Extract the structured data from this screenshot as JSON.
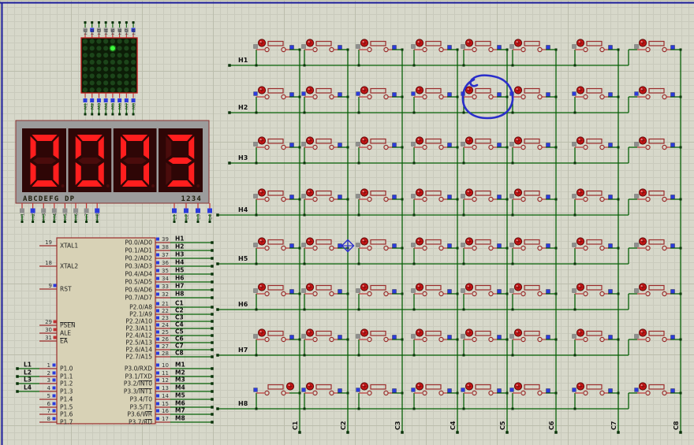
{
  "sheet": {
    "border_color": "#1b1b9a"
  },
  "led_matrix": {
    "rows": 8,
    "cols": 8,
    "lit_dot": {
      "row": 2,
      "col": 5
    },
    "top_pins": [
      "H1",
      "H2",
      "H3",
      "H4",
      "H5",
      "H6",
      "H7",
      "H8"
    ],
    "bottom_pins": [
      "M1",
      "M2",
      "M3",
      "M4",
      "M5",
      "M6",
      "M7",
      "M8"
    ]
  },
  "seven_segment": {
    "value": "0003",
    "segment_caption": "ABCDEFG DP",
    "digit_caption": "1234",
    "segment_pins": [
      "H1",
      "H2",
      "H3",
      "H4",
      "H5",
      "H6",
      "H7",
      "H8"
    ],
    "digit_pins": [
      "L1",
      "L2",
      "L3",
      "L4"
    ]
  },
  "mcu": {
    "left_pins": [
      {
        "num": "19",
        "name": "XTAL1"
      },
      {
        "num": "18",
        "name": "XTAL2"
      },
      {
        "num": "9",
        "name": "RST",
        "marker": "blue"
      },
      {
        "num": "29",
        "name": "PSEN",
        "overline": true,
        "marker": "red"
      },
      {
        "num": "30",
        "name": "ALE",
        "marker": "red"
      },
      {
        "num": "31",
        "name": "EA",
        "overline": true,
        "marker": "red"
      }
    ],
    "port1_pins": [
      {
        "num": "1",
        "name": "P1.0",
        "net": "L1"
      },
      {
        "num": "2",
        "name": "P1.1",
        "net": "L2"
      },
      {
        "num": "3",
        "name": "P1.2",
        "net": "L3"
      },
      {
        "num": "4",
        "name": "P1.3",
        "net": "L4"
      },
      {
        "num": "5",
        "name": "P1.4"
      },
      {
        "num": "6",
        "name": "P1.5"
      },
      {
        "num": "7",
        "name": "P1.6"
      },
      {
        "num": "8",
        "name": "P1.7"
      }
    ],
    "port0_pins": [
      {
        "num": "39",
        "name": "P0.0/AD0",
        "net": "H1"
      },
      {
        "num": "38",
        "name": "P0.1/AD1",
        "net": "H2"
      },
      {
        "num": "37",
        "name": "P0.2/AD2",
        "net": "H3"
      },
      {
        "num": "36",
        "name": "P0.3/AD3",
        "net": "H4"
      },
      {
        "num": "35",
        "name": "P0.4/AD4",
        "net": "H5"
      },
      {
        "num": "34",
        "name": "P0.5/AD5",
        "net": "H6"
      },
      {
        "num": "33",
        "name": "P0.6/AD6",
        "net": "H7"
      },
      {
        "num": "32",
        "name": "P0.7/AD7",
        "net": "H8"
      }
    ],
    "port2_pins": [
      {
        "num": "21",
        "name": "P2.0/A8",
        "net": "C1"
      },
      {
        "num": "22",
        "name": "P2.1/A9",
        "net": "C2"
      },
      {
        "num": "23",
        "name": "P2.2/A10",
        "net": "C3"
      },
      {
        "num": "24",
        "name": "P2.3/A11",
        "net": "C4"
      },
      {
        "num": "25",
        "name": "P2.4/A12",
        "net": "C5"
      },
      {
        "num": "26",
        "name": "P2.5/A13",
        "net": "C6"
      },
      {
        "num": "27",
        "name": "P2.6/A14",
        "net": "C7"
      },
      {
        "num": "28",
        "name": "P2.7/A15",
        "net": "C8"
      }
    ],
    "port3_pins": [
      {
        "num": "10",
        "name": "P3.0/RXD",
        "net": "M1"
      },
      {
        "num": "11",
        "name": "P3.1/TXD",
        "net": "M2"
      },
      {
        "num": "12",
        "name": "P3.2/",
        "bar": "INT0",
        "net": "M3"
      },
      {
        "num": "13",
        "name": "P3.3/",
        "bar": "INT1",
        "net": "M4"
      },
      {
        "num": "14",
        "name": "P3.4/T0",
        "net": "M5"
      },
      {
        "num": "15",
        "name": "P3.5/T1",
        "net": "M6"
      },
      {
        "num": "16",
        "name": "P3.6/",
        "bar": "WR",
        "net": "M7"
      },
      {
        "num": "17",
        "name": "P3.7/",
        "bar": "RD",
        "net": "M8"
      }
    ]
  },
  "keypad": {
    "row_labels": [
      "H1",
      "H2",
      "H3",
      "H4",
      "H5",
      "H6",
      "H7",
      "H8"
    ],
    "col_labels": [
      "C1",
      "C2",
      "C3",
      "C4",
      "C5",
      "C6",
      "C7",
      "C8"
    ],
    "blue_left_square_rows": [
      "H2",
      "H8"
    ]
  },
  "annotations": [
    {
      "type": "freehand-circle",
      "around": "button H2/C5",
      "color": "#2a2ecb"
    },
    {
      "type": "origin-marker",
      "near": "C2/H5 junction",
      "color": "#2a2ecb"
    }
  ],
  "colors": {
    "background": "#d7d8ca",
    "grid_minor": "#c9cabc",
    "grid_major": "#bbbdac",
    "wire_green": "#076107",
    "terminal_dark": "#0a320a",
    "component_red": "#9a2b2b",
    "red_wire": "#bf3434",
    "button_cap_red": "#c41414",
    "mcu_fill": "#d8d2b6",
    "display_frame": "#9c9c9c",
    "display_bg": "#2e0606",
    "segment_lit": "#ff1e1e",
    "segment_dim": "#4a0c0c",
    "matrix_body": "#0c1d07",
    "matrix_border": "#c01818",
    "dot_unlit": "#1c451a",
    "dot_lit": "#3cff3c",
    "label_blue": "#2b3bdd",
    "label_gray": "#8f8f8f",
    "text_dark": "#1f1f1f",
    "annotation_blue": "#2a2ecb"
  }
}
